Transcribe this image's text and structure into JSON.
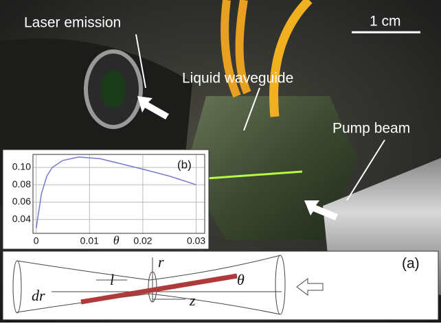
{
  "photo": {
    "labels": [
      "Laser emission",
      "Liquid waveguide",
      "Pump beam"
    ],
    "scale_bar": "1 cm"
  },
  "chart_data": {
    "type": "line",
    "title": "(b)",
    "x_label": "θ",
    "x": [
      0,
      0.001,
      0.002,
      0.003,
      0.005,
      0.008,
      0.012,
      0.016,
      0.02,
      0.025,
      0.03
    ],
    "values": [
      0.03,
      0.07,
      0.09,
      0.1,
      0.108,
      0.112,
      0.11,
      0.104,
      0.098,
      0.09,
      0.08
    ],
    "color": "#7777cc",
    "xlim": [
      -0.0006,
      0.0316
    ],
    "ylim": [
      0.024,
      0.115
    ],
    "xticks": [
      0,
      0.01,
      0.02,
      0.03
    ],
    "yticks": [
      0.04,
      0.06,
      0.08,
      {
        "value": 0.1,
        "label": "0.10"
      }
    ],
    "grid": true
  },
  "diagram": {
    "panel_label": "(a)",
    "labels": [
      "r",
      "θ",
      "dr",
      "l",
      "z"
    ]
  }
}
